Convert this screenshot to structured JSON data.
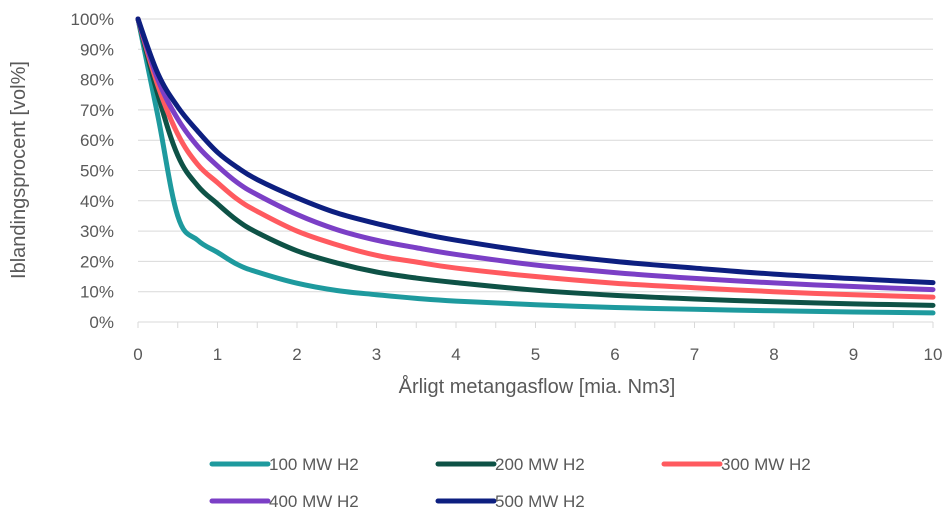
{
  "chart_data": {
    "type": "line",
    "xlabel": "Årligt metangasflow [mia. Nm3]",
    "ylabel": "Iblandingsprocent [vol%]",
    "xlim": [
      0,
      10
    ],
    "ylim": [
      0,
      100
    ],
    "x_ticks": [
      "0",
      "1",
      "2",
      "3",
      "4",
      "5",
      "6",
      "7",
      "8",
      "9",
      "10"
    ],
    "y_ticks": [
      "0%",
      "10%",
      "20%",
      "30%",
      "40%",
      "50%",
      "60%",
      "70%",
      "80%",
      "90%",
      "100%"
    ],
    "grid": "horizontal",
    "legend_position": "bottom",
    "x": [
      0,
      0.25,
      0.5,
      0.75,
      1,
      1.25,
      1.5,
      2,
      2.5,
      3,
      3.5,
      4,
      5,
      6,
      7,
      8,
      9,
      10
    ],
    "series": [
      {
        "name": "100 MW H2",
        "color": "#1E9A9E",
        "values": [
          100,
          68,
          35,
          27,
          23,
          19,
          16.5,
          12.8,
          10.4,
          9,
          7.8,
          6.9,
          5.7,
          4.8,
          4.2,
          3.7,
          3.3,
          3
        ]
      },
      {
        "name": "200 MW H2",
        "color": "#0E5246",
        "values": [
          100,
          75,
          55,
          45,
          39,
          33.5,
          29.5,
          23.5,
          19.5,
          16.5,
          14.5,
          13,
          10.5,
          8.8,
          7.6,
          6.7,
          6,
          5.5
        ]
      },
      {
        "name": "300 MW H2",
        "color": "#FF5A5F",
        "values": [
          100,
          78,
          62,
          52,
          46,
          40.5,
          36.5,
          30,
          25.5,
          22,
          19.8,
          17.8,
          15,
          12.8,
          11.3,
          10,
          9,
          8.2
        ]
      },
      {
        "name": "400 MW H2",
        "color": "#7B3FC6",
        "values": [
          100,
          80,
          67,
          58,
          51.5,
          46,
          42,
          35.5,
          30.5,
          27,
          24.5,
          22.3,
          18.8,
          16.3,
          14.4,
          12.9,
          11.7,
          10.7
        ]
      },
      {
        "name": "500 MW H2",
        "color": "#0D1F80",
        "values": [
          100,
          82,
          71,
          63,
          56,
          51,
          47,
          41,
          36,
          32.5,
          29.5,
          27,
          23,
          20,
          17.8,
          15.8,
          14.3,
          13
        ]
      }
    ]
  }
}
